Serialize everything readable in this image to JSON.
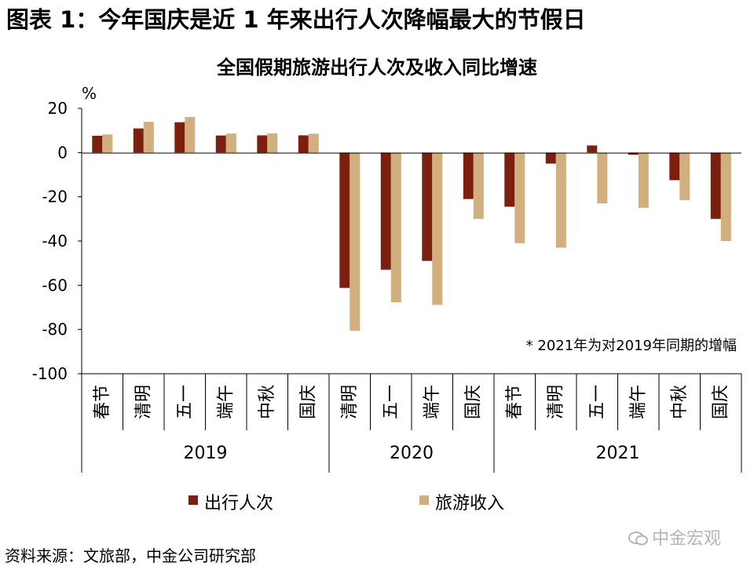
{
  "figure_title": "图表 1：今年国庆是近 1 年来出行人次降幅最大的节假日",
  "source_note": "资料来源：文旅部，中金公司研究部",
  "watermark": "中金宏观",
  "colors": {
    "trips": "#7B1F0E",
    "revenue": "#D2AF7E",
    "axis": "#000000"
  },
  "chart_data": {
    "type": "bar",
    "title": "全国假期旅游出行人次及收入同比增速",
    "ylabel": "%",
    "ylim": [
      -100,
      20
    ],
    "yticks": [
      20,
      0,
      -20,
      -40,
      -60,
      -80,
      -100
    ],
    "grid": false,
    "legend_position": "bottom",
    "annotation": "* 2021年为对2019年同期的增幅",
    "groups": [
      {
        "label": "2019",
        "count": 6
      },
      {
        "label": "2020",
        "count": 4
      },
      {
        "label": "2021",
        "count": 6
      }
    ],
    "categories": [
      "春节",
      "清明",
      "五一",
      "端午",
      "中秋",
      "国庆",
      "清明",
      "五一",
      "端午",
      "国庆",
      "春节",
      "清明",
      "五一",
      "端午",
      "中秋",
      "国庆"
    ],
    "series": [
      {
        "name": "出行人次",
        "values": [
          7.6,
          10.9,
          13.7,
          7.7,
          7.8,
          7.8,
          -61.2,
          -53.0,
          -49.0,
          -21.0,
          -24.5,
          -5.0,
          3.2,
          -1.0,
          -12.5,
          -30.0
        ]
      },
      {
        "name": "旅游收入",
        "values": [
          8.2,
          13.9,
          16.1,
          8.6,
          8.7,
          8.5,
          -80.6,
          -67.7,
          -68.9,
          -30.0,
          -41.0,
          -43.0,
          -23.0,
          -25.0,
          -21.5,
          -40.0
        ]
      }
    ]
  }
}
